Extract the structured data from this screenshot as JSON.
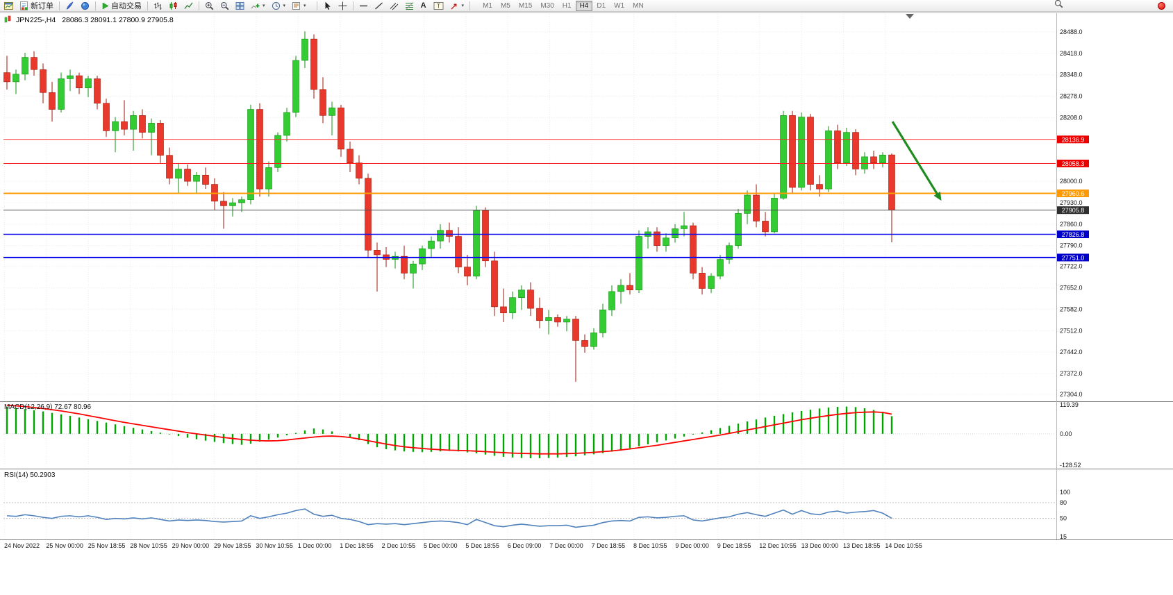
{
  "toolbar": {
    "new_order_label": "新订单",
    "autotrading_label": "自动交易",
    "text_tool_glyph": "A",
    "label_tool_glyph": "T",
    "dropdown_caret": "▾",
    "timeframes": [
      "M1",
      "M5",
      "M15",
      "M30",
      "H1",
      "H4",
      "D1",
      "W1",
      "MN"
    ],
    "active_timeframe": "H4"
  },
  "chart_data": {
    "type": "candlestick",
    "symbol_period": "JPN225-,H4",
    "ohlc_text": "28086.3 28091.1 27800.9 27905.8",
    "price_axis": {
      "min": 27304.0,
      "max": 28488.0,
      "ticks": [
        "28488.0",
        "28418.0",
        "28348.0",
        "28278.0",
        "28208.0",
        "28000.0",
        "27930.0",
        "27860.0",
        "27790.0",
        "27722.0",
        "27652.0",
        "27582.0",
        "27512.0",
        "27442.0",
        "27372.0",
        "27304.0"
      ]
    },
    "time_axis": [
      "24 Nov 2022",
      "25 Nov 00:00",
      "25 Nov 18:55",
      "28 Nov 10:55",
      "29 Nov 00:00",
      "29 Nov 18:55",
      "30 Nov 10:55",
      "1 Dec 00:00",
      "1 Dec 18:55",
      "2 Dec 10:55",
      "5 Dec 00:00",
      "5 Dec 18:55",
      "6 Dec 09:00",
      "7 Dec 00:00",
      "7 Dec 18:55",
      "8 Dec 10:55",
      "9 Dec 00:00",
      "9 Dec 18:55",
      "12 Dec 10:55",
      "13 Dec 00:00",
      "13 Dec 18:55",
      "14 Dec 10:55"
    ],
    "candles": [
      [
        28355,
        28410,
        28300,
        28325
      ],
      [
        28325,
        28365,
        28285,
        28350
      ],
      [
        28350,
        28420,
        28330,
        28405
      ],
      [
        28405,
        28425,
        28345,
        28365
      ],
      [
        28365,
        28385,
        28255,
        28290
      ],
      [
        28290,
        28325,
        28195,
        28235
      ],
      [
        28235,
        28355,
        28225,
        28335
      ],
      [
        28335,
        28365,
        28295,
        28345
      ],
      [
        28345,
        28355,
        28285,
        28305
      ],
      [
        28305,
        28345,
        28275,
        28335
      ],
      [
        28335,
        28345,
        28235,
        28255
      ],
      [
        28255,
        28270,
        28145,
        28165
      ],
      [
        28165,
        28210,
        28095,
        28195
      ],
      [
        28195,
        28265,
        28150,
        28170
      ],
      [
        28170,
        28230,
        28100,
        28215
      ],
      [
        28215,
        28235,
        28140,
        28160
      ],
      [
        28160,
        28205,
        28085,
        28190
      ],
      [
        28190,
        28200,
        28060,
        28085
      ],
      [
        28085,
        28110,
        27990,
        28010
      ],
      [
        28010,
        28060,
        27960,
        28040
      ],
      [
        28040,
        28055,
        27985,
        28000
      ],
      [
        28000,
        28030,
        27960,
        28020
      ],
      [
        28020,
        28045,
        27975,
        27990
      ],
      [
        27990,
        28010,
        27905,
        27935
      ],
      [
        27935,
        27965,
        27845,
        27920
      ],
      [
        27920,
        27945,
        27885,
        27930
      ],
      [
        27930,
        27950,
        27900,
        27940
      ],
      [
        27940,
        28250,
        27925,
        28235
      ],
      [
        28235,
        28255,
        27950,
        27975
      ],
      [
        27975,
        28065,
        27950,
        28045
      ],
      [
        28045,
        28160,
        28030,
        28150
      ],
      [
        28150,
        28240,
        28130,
        28225
      ],
      [
        28225,
        28410,
        28210,
        28395
      ],
      [
        28395,
        28490,
        28370,
        28465
      ],
      [
        28465,
        28480,
        28270,
        28300
      ],
      [
        28300,
        28340,
        28190,
        28215
      ],
      [
        28215,
        28260,
        28150,
        28240
      ],
      [
        28240,
        28250,
        28080,
        28105
      ],
      [
        28105,
        28130,
        28030,
        28060
      ],
      [
        28060,
        28085,
        27990,
        28010
      ],
      [
        28010,
        28025,
        27750,
        27775
      ],
      [
        27775,
        27800,
        27640,
        27760
      ],
      [
        27760,
        27785,
        27720,
        27745
      ],
      [
        27745,
        27770,
        27715,
        27755
      ],
      [
        27755,
        27790,
        27680,
        27700
      ],
      [
        27700,
        27740,
        27650,
        27730
      ],
      [
        27730,
        27790,
        27710,
        27780
      ],
      [
        27780,
        27820,
        27750,
        27805
      ],
      [
        27805,
        27860,
        27780,
        27840
      ],
      [
        27840,
        27865,
        27800,
        27820
      ],
      [
        27820,
        27850,
        27700,
        27720
      ],
      [
        27720,
        27760,
        27660,
        27690
      ],
      [
        27690,
        27920,
        27680,
        27905
      ],
      [
        27905,
        27915,
        27720,
        27740
      ],
      [
        27740,
        27770,
        27560,
        27590
      ],
      [
        27590,
        27650,
        27540,
        27570
      ],
      [
        27570,
        27640,
        27550,
        27620
      ],
      [
        27620,
        27660,
        27580,
        27645
      ],
      [
        27645,
        27670,
        27560,
        27585
      ],
      [
        27585,
        27620,
        27520,
        27545
      ],
      [
        27545,
        27580,
        27500,
        27555
      ],
      [
        27555,
        27565,
        27525,
        27540
      ],
      [
        27540,
        27560,
        27510,
        27550
      ],
      [
        27550,
        27560,
        27345,
        27480
      ],
      [
        27480,
        27500,
        27440,
        27460
      ],
      [
        27460,
        27520,
        27450,
        27505
      ],
      [
        27505,
        27600,
        27490,
        27580
      ],
      [
        27580,
        27660,
        27560,
        27640
      ],
      [
        27640,
        27680,
        27600,
        27660
      ],
      [
        27660,
        27700,
        27630,
        27645
      ],
      [
        27645,
        27840,
        27635,
        27820
      ],
      [
        27820,
        27850,
        27780,
        27835
      ],
      [
        27835,
        27850,
        27770,
        27790
      ],
      [
        27790,
        27830,
        27770,
        27815
      ],
      [
        27815,
        27860,
        27800,
        27845
      ],
      [
        27845,
        27900,
        27820,
        27855
      ],
      [
        27855,
        27865,
        27680,
        27700
      ],
      [
        27700,
        27720,
        27630,
        27650
      ],
      [
        27650,
        27700,
        27635,
        27690
      ],
      [
        27690,
        27760,
        27680,
        27745
      ],
      [
        27745,
        27800,
        27730,
        27790
      ],
      [
        27790,
        27910,
        27780,
        27895
      ],
      [
        27895,
        27970,
        27860,
        27955
      ],
      [
        27955,
        27990,
        27850,
        27870
      ],
      [
        27870,
        27900,
        27820,
        27835
      ],
      [
        27835,
        27960,
        27830,
        27945
      ],
      [
        27945,
        28230,
        27940,
        28215
      ],
      [
        28215,
        28230,
        27960,
        27980
      ],
      [
        27980,
        28225,
        27970,
        28210
      ],
      [
        28210,
        28220,
        27970,
        27990
      ],
      [
        27990,
        28020,
        27950,
        27975
      ],
      [
        27975,
        28180,
        27965,
        28165
      ],
      [
        28165,
        28185,
        28040,
        28060
      ],
      [
        28060,
        28175,
        28050,
        28160
      ],
      [
        28160,
        28170,
        28020,
        28040
      ],
      [
        28040,
        28095,
        28025,
        28080
      ],
      [
        28080,
        28100,
        28040,
        28060
      ],
      [
        28060,
        28095,
        28045,
        28086
      ],
      [
        28086.3,
        28091.1,
        27800.9,
        27905.8
      ]
    ],
    "hlines": [
      {
        "name": "resistance-1",
        "price": 28136.9,
        "label": "28136.9",
        "color": "#ff2222",
        "badge": "#ee0000",
        "width": 1
      },
      {
        "name": "resistance-2",
        "price": 28058.3,
        "label": "28058.3",
        "color": "#ff2222",
        "badge": "#ee0000",
        "width": 1
      },
      {
        "name": "pivot-orange",
        "price": 27960.6,
        "label": "27960.6",
        "color": "#ff9900",
        "badge": "#ff9900",
        "width": 2
      },
      {
        "name": "bid-price",
        "price": 27905.8,
        "label": "27905.8",
        "color": "#4d4d4d",
        "badge": "#2f2f2f",
        "width": 1
      },
      {
        "name": "support-1",
        "price": 27826.8,
        "label": "27826.8",
        "color": "#1111ee",
        "badge": "#0000cc",
        "width": 1.4
      },
      {
        "name": "support-2",
        "price": 27751.0,
        "label": "27751.0",
        "color": "#1111ee",
        "badge": "#0000cc",
        "width": 2.2
      }
    ],
    "arrow": {
      "from_t": 0.845,
      "from_price": 28195,
      "to_t": 0.889,
      "to_price": 27950,
      "color": "#1e8c1e"
    },
    "macd": {
      "label_full": "MACD(12,26,9) 72.67 80.96",
      "scale_max": 119.39,
      "scale_min": -128.52,
      "scale_labels": [
        "119.39",
        "0.00",
        "-128.52"
      ],
      "hist_color": "#00a500",
      "signal_color": "#ff0000",
      "histogram": [
        110,
        106,
        102,
        97,
        92,
        86,
        80,
        74,
        67,
        60,
        53,
        46,
        39,
        32,
        25,
        18,
        11,
        5,
        -2,
        -9,
        -16,
        -22,
        -28,
        -33,
        -38,
        -42,
        -45,
        -40,
        -32,
        -24,
        -15,
        -6,
        4,
        14,
        22,
        18,
        10,
        0,
        -12,
        -26,
        -42,
        -55,
        -63,
        -68,
        -72,
        -74,
        -75,
        -74,
        -72,
        -70,
        -72,
        -76,
        -80,
        -85,
        -90,
        -94,
        -97,
        -99,
        -100,
        -100,
        -99,
        -97,
        -95,
        -92,
        -88,
        -84,
        -79,
        -73,
        -66,
        -59,
        -51,
        -43,
        -35,
        -27,
        -19,
        -11,
        -3,
        6,
        15,
        24,
        33,
        42,
        51,
        59,
        67,
        74,
        81,
        88,
        94,
        99,
        104,
        108,
        111,
        112,
        110,
        105,
        98,
        88,
        72.67
      ],
      "signal": [
        118,
        115,
        112,
        108,
        104,
        99,
        94,
        88,
        82,
        75,
        68,
        61,
        54,
        47,
        41,
        35,
        29,
        23,
        17,
        11,
        5,
        0,
        -5,
        -10,
        -15,
        -19,
        -23,
        -26,
        -28,
        -29,
        -28,
        -25,
        -21,
        -17,
        -13,
        -10,
        -9,
        -11,
        -15,
        -21,
        -28,
        -35,
        -42,
        -48,
        -53,
        -57,
        -60,
        -63,
        -65,
        -67,
        -68,
        -69,
        -71,
        -73,
        -75,
        -77,
        -79,
        -80,
        -81,
        -82,
        -82,
        -82,
        -81,
        -80,
        -78,
        -76,
        -73,
        -70,
        -66,
        -62,
        -57,
        -52,
        -47,
        -41,
        -35,
        -29,
        -23,
        -17,
        -11,
        -5,
        2,
        9,
        16,
        23,
        30,
        37,
        44,
        51,
        58,
        64,
        70,
        75,
        80,
        84,
        87,
        89,
        90,
        88,
        80.96
      ]
    },
    "rsi": {
      "label_full": "RSI(14) 50.2903",
      "scale_max": 100,
      "scale_min": 15,
      "scale_labels": [
        "100",
        "80",
        "50",
        "15"
      ],
      "levels": [
        80,
        50
      ],
      "color": "#4f81bd",
      "values": [
        55,
        54,
        57,
        55,
        52,
        50,
        54,
        55,
        53,
        55,
        52,
        48,
        50,
        49,
        51,
        49,
        51,
        48,
        45,
        47,
        46,
        47,
        46,
        44,
        43,
        44,
        45,
        55,
        50,
        53,
        57,
        60,
        65,
        68,
        58,
        54,
        56,
        50,
        48,
        44,
        38,
        40,
        39,
        40,
        38,
        40,
        42,
        44,
        45,
        44,
        42,
        38,
        48,
        42,
        36,
        34,
        37,
        39,
        37,
        35,
        36,
        36,
        37,
        33,
        35,
        37,
        42,
        45,
        46,
        45,
        52,
        53,
        51,
        52,
        54,
        55,
        47,
        45,
        48,
        51,
        53,
        58,
        61,
        57,
        54,
        60,
        66,
        58,
        65,
        59,
        57,
        62,
        64,
        60,
        62,
        63,
        65,
        60,
        50.29
      ]
    },
    "colors": {
      "bull": "#33cc33",
      "bull_dark": "#0f8f0f",
      "bear": "#e8392c",
      "bear_dark": "#a01508",
      "grid": "#ececec"
    }
  }
}
